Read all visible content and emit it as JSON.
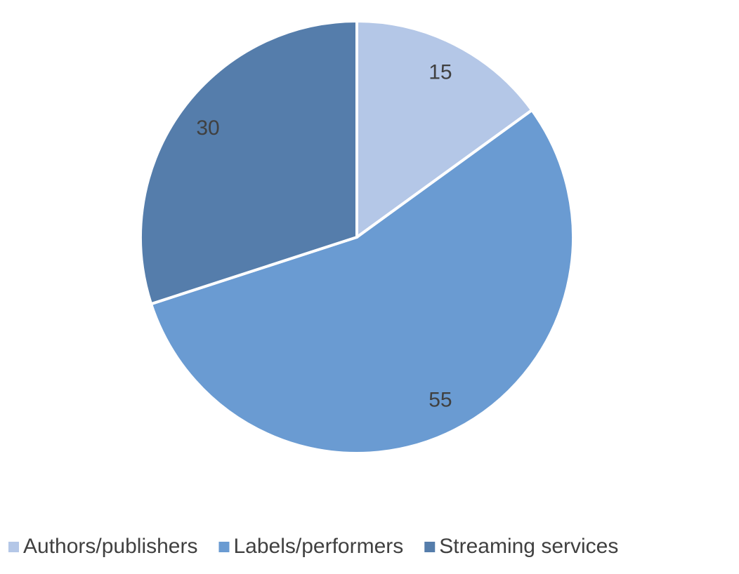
{
  "chart_data": {
    "type": "pie",
    "categories": [
      "Authors/publishers",
      "Labels/performers",
      "Streaming services"
    ],
    "values": [
      15,
      55,
      30
    ],
    "colors": [
      "#b4c7e7",
      "#6a9bd2",
      "#557dab"
    ],
    "legend": "bottom"
  }
}
